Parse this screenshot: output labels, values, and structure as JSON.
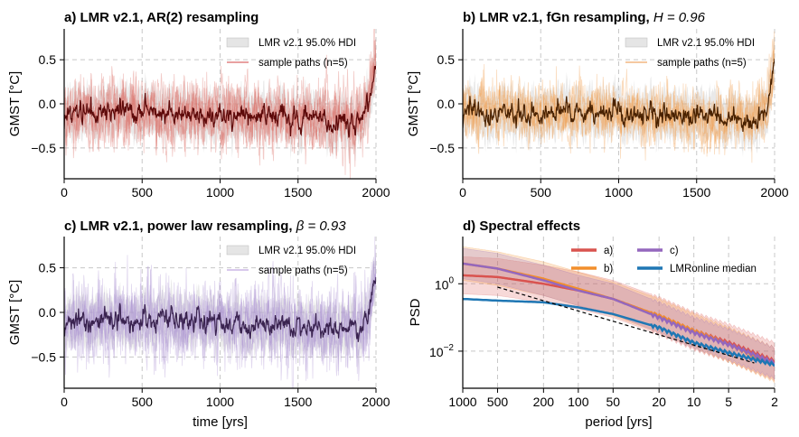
{
  "chart_data": [
    {
      "type": "line",
      "id": "a",
      "title_bold": "a) LMR v2.1, AR(2) resampling",
      "title_math": "",
      "xlabel": "",
      "ylabel": "GMST [°C]",
      "xlim": [
        0,
        2000
      ],
      "ylim": [
        -0.85,
        0.85
      ],
      "xticks": [
        0,
        500,
        1000,
        1500,
        2000
      ],
      "xtick_labels": [
        "0",
        "500",
        "1000",
        "1500",
        "2000"
      ],
      "yticks": [
        -0.5,
        0.0,
        0.5
      ],
      "ytick_labels": [
        "−0.5",
        "0.0",
        "0.5"
      ],
      "grid": true,
      "legend_position": "top-right",
      "legend": [
        {
          "label": "LMR v2.1 95.0% HDI",
          "kind": "band",
          "color": "#d3d3d3"
        },
        {
          "label": "sample paths (n=5)",
          "kind": "line",
          "color": "#e8a0a0"
        }
      ],
      "colors": {
        "median": "#5e0a0a",
        "paths": "#d9675f",
        "band": "#cfcfcf"
      },
      "series_description": "median GMST near -0.1 with warming to ~0.5 after 1900",
      "median_anchor_values": {
        "x": [
          0,
          500,
          1000,
          1500,
          1850,
          1950,
          2000
        ],
        "y": [
          -0.08,
          -0.1,
          -0.12,
          -0.15,
          -0.2,
          -0.05,
          0.5
        ]
      },
      "hdi_halfwidth": 0.25,
      "path_spread": 0.35
    },
    {
      "type": "line",
      "id": "b",
      "title_bold": "b) LMR v2.1, fGn resampling, ",
      "title_math": "H = 0.96",
      "xlabel": "",
      "ylabel": "GMST [°C]",
      "xlim": [
        0,
        2000
      ],
      "ylim": [
        -0.85,
        0.85
      ],
      "xticks": [
        0,
        500,
        1000,
        1500,
        2000
      ],
      "xtick_labels": [
        "0",
        "500",
        "1000",
        "1500",
        "2000"
      ],
      "yticks": [
        -0.5,
        0.0,
        0.5
      ],
      "ytick_labels": [
        "−0.5",
        "0.0",
        "0.5"
      ],
      "grid": true,
      "legend_position": "top-right",
      "legend": [
        {
          "label": "LMR v2.1 95.0% HDI",
          "kind": "band",
          "color": "#d3d3d3"
        },
        {
          "label": "sample paths (n=5)",
          "kind": "line",
          "color": "#f5c8a0"
        }
      ],
      "colors": {
        "median": "#4a2200",
        "paths": "#f29a48",
        "band": "#cfcfcf"
      },
      "series_description": "median GMST near -0.1 with warming to ~0.5 after 1900",
      "median_anchor_values": {
        "x": [
          0,
          500,
          1000,
          1500,
          1850,
          1950,
          2000
        ],
        "y": [
          -0.08,
          -0.1,
          -0.12,
          -0.15,
          -0.2,
          -0.05,
          0.5
        ]
      },
      "hdi_halfwidth": 0.25,
      "path_spread": 0.3
    },
    {
      "type": "line",
      "id": "c",
      "title_bold": "c) LMR v2.1, power law resampling, ",
      "title_math": "β = 0.93",
      "xlabel": "time [yrs]",
      "ylabel": "GMST [°C]",
      "xlim": [
        0,
        2000
      ],
      "ylim": [
        -0.85,
        0.85
      ],
      "xticks": [
        0,
        500,
        1000,
        1500,
        2000
      ],
      "xtick_labels": [
        "0",
        "500",
        "1000",
        "1500",
        "2000"
      ],
      "yticks": [
        -0.5,
        0.0,
        0.5
      ],
      "ytick_labels": [
        "−0.5",
        "0.0",
        "0.5"
      ],
      "grid": true,
      "legend_position": "top-right",
      "legend": [
        {
          "label": "LMR v2.1 95.0% HDI",
          "kind": "band",
          "color": "#d3d3d3"
        },
        {
          "label": "sample paths (n=5)",
          "kind": "line",
          "color": "#d8c8ec"
        }
      ],
      "colors": {
        "median": "#3a2350",
        "paths": "#a98fd0",
        "band": "#cfcfcf"
      },
      "series_description": "median GMST near -0.1 with warming to ~0.5 after 1900",
      "median_anchor_values": {
        "x": [
          0,
          500,
          1000,
          1500,
          1850,
          1950,
          2000
        ],
        "y": [
          -0.08,
          -0.1,
          -0.12,
          -0.15,
          -0.2,
          -0.05,
          0.5
        ]
      },
      "hdi_halfwidth": 0.25,
      "path_spread": 0.42
    },
    {
      "type": "line",
      "id": "d",
      "title_bold": "d) Spectral effects",
      "title_math": "",
      "xlabel": "period [yrs]",
      "ylabel": "PSD",
      "xscale": "log-reversed",
      "yscale": "log",
      "xlim": [
        1000,
        2
      ],
      "ylim_log10": [
        -3.1,
        1.4
      ],
      "xticks": [
        1000,
        500,
        200,
        100,
        50,
        20,
        10,
        5,
        2
      ],
      "xtick_labels": [
        "1000",
        "500",
        "200",
        "100",
        "50",
        "20",
        "10",
        "5",
        "2"
      ],
      "yticks_log10": [
        -2,
        0
      ],
      "ytick_base": "10",
      "ytick_exps": [
        "−2",
        "0"
      ],
      "grid": true,
      "legend_position": "top-right",
      "legend": [
        {
          "label": "a)",
          "color": "#d9534f"
        },
        {
          "label": "b)",
          "color": "#f28e2b"
        },
        {
          "label": "c)",
          "color": "#9467bd"
        },
        {
          "label": "LMRonline median",
          "color": "#1f77b4"
        }
      ],
      "series": [
        {
          "name": "a)",
          "color": "#d9534f",
          "x": [
            1000,
            500,
            200,
            100,
            50,
            20,
            10,
            5,
            2
          ],
          "log10_psd": [
            0.25,
            0.2,
            0.0,
            -0.2,
            -0.45,
            -0.95,
            -1.4,
            -1.75,
            -2.3
          ],
          "band_halfwidth_log10": 0.55
        },
        {
          "name": "b)",
          "color": "#f28e2b",
          "x": [
            1000,
            500,
            200,
            100,
            50,
            20,
            10,
            5,
            2
          ],
          "log10_psd": [
            0.6,
            0.45,
            0.15,
            -0.15,
            -0.45,
            -0.95,
            -1.4,
            -1.8,
            -2.4
          ],
          "band_halfwidth_log10": 0.5
        },
        {
          "name": "c)",
          "color": "#9467bd",
          "x": [
            1000,
            500,
            200,
            100,
            50,
            20,
            10,
            5,
            2
          ],
          "log10_psd": [
            0.6,
            0.45,
            0.1,
            -0.2,
            -0.45,
            -1.0,
            -1.45,
            -1.8,
            -2.35
          ],
          "band_halfwidth_log10": 0.45
        },
        {
          "name": "LMRonline median",
          "color": "#1f77b4",
          "x": [
            1000,
            500,
            200,
            100,
            50,
            20,
            10,
            5,
            2
          ],
          "log10_psd": [
            -0.45,
            -0.5,
            -0.55,
            -0.7,
            -0.9,
            -1.3,
            -1.75,
            -2.05,
            -2.4
          ],
          "band_halfwidth_log10": 0
        }
      ],
      "reference_line": {
        "style": "dashed",
        "color": "#000000",
        "x": [
          500,
          3
        ],
        "log10_psd": [
          -0.1,
          -2.35
        ]
      }
    }
  ]
}
